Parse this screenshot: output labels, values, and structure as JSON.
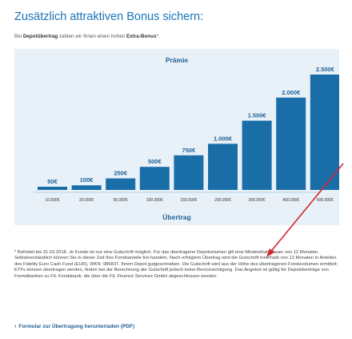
{
  "header": {
    "title": "Zusätzlich attraktiven Bonus sichern:",
    "subtitle_prefix": "Bei ",
    "subtitle_bold1": "Depotübertrag",
    "subtitle_mid": " zahlen wir Ihnen einen hohen ",
    "subtitle_bold2": "Extra-Bonus",
    "subtitle_suffix": "*."
  },
  "chart_data": {
    "type": "bar",
    "title": "Prämie",
    "xlabel": "Übertrag",
    "categories": [
      "10.000€",
      "20.000€",
      "50.000€",
      "100.000€",
      "150.000€",
      "200.000€",
      "300.000€",
      "400.000€",
      "500.000€"
    ],
    "values": [
      50,
      100,
      250,
      500,
      750,
      1000,
      1500,
      2000,
      2500
    ],
    "value_labels": [
      "50€",
      "100€",
      "250€",
      "500€",
      "750€",
      "1.000€",
      "1.500€",
      "2.000€",
      "2.500€"
    ],
    "ylim": [
      0,
      2500
    ],
    "bar_color": "#1a6ea8"
  },
  "footnote": {
    "text": "* Befristet bis 31.03.2018. Je Kunde ist nur eine Gutschrift möglich. Für das übertragene Depotvolumen gilt eine Mindesthaltedauer von 12 Monaten. Selbstverständlich können Sie in dieser Zeit Ihre Fondsanteile frei handeln. Nach erfolgtem Übertrag wird die Gutschrift innerhalb von 12 Monaten in Anteilen des Fidelity Euro Cash Fund (EUR), WKN: 986837, Ihrem Depot gutgeschrieben. Die Gutschrift wird aus der Höhe des übertragenen Fondsvolumen ermittelt; ETFs können übertragen werden, finden bei der Berechnung der Gutschrift jedoch keine Berücksichtigung. Das Angebot ist gültig für Depotüberträge von Fremdbanken zu FIL Fondsbank, die über die FIL Finance Services GmbH abgeschlossen werden."
  },
  "download": {
    "label": "Formular zur Übertragung herunterladen (PDF)"
  },
  "colors": {
    "accent": "#1a73b6",
    "annotation_arrow": "#d9242b"
  }
}
